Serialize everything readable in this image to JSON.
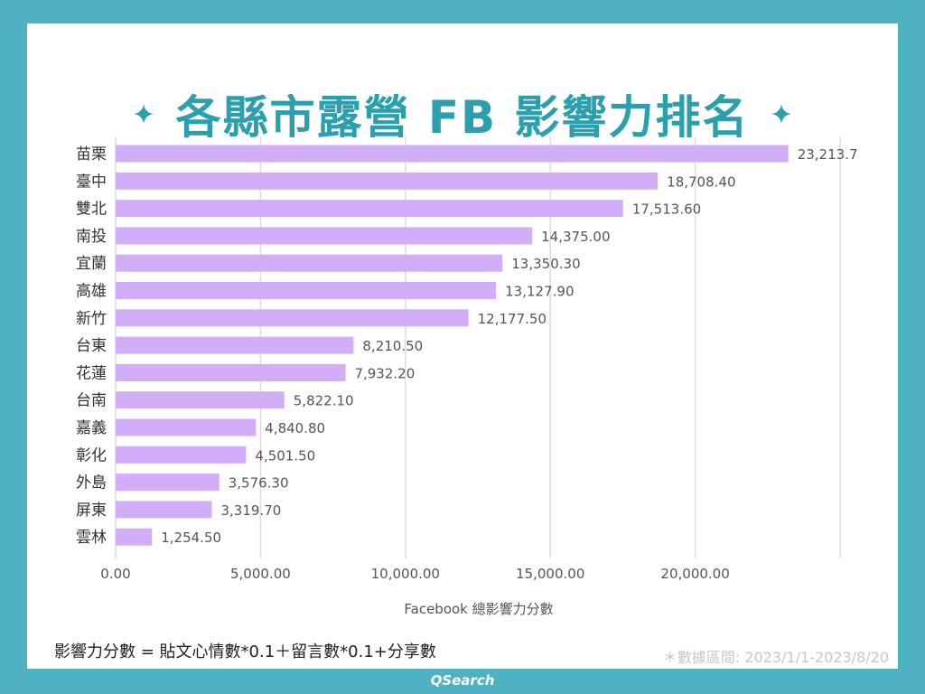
{
  "header": {
    "title": "各縣市露營 FB 影響力排名"
  },
  "footer": {
    "formula": "影響力分數 = 貼文心情數*0.1＋留言數*0.1+分享數",
    "date_range": "＊數據區間: 2023/1/1-2023/8/20",
    "brand": "QSearch"
  },
  "colors": {
    "background": "#4FB2C2",
    "bar": "#D1AEF7",
    "title": "#2A9FAE",
    "grid": "#DDDDDD"
  },
  "chart_data": {
    "type": "bar",
    "orientation": "horizontal",
    "categories": [
      "苗栗",
      "臺中",
      "雙北",
      "南投",
      "宜蘭",
      "高雄",
      "新竹",
      "台東",
      "花蓮",
      "台南",
      "嘉義",
      "彰化",
      "外島",
      "屏東",
      "雲林"
    ],
    "values": [
      23213.7,
      18708.4,
      17513.6,
      14375.0,
      13350.3,
      13127.9,
      12177.5,
      8210.5,
      7932.2,
      5822.1,
      4840.8,
      4501.5,
      3576.3,
      3319.7,
      1254.5
    ],
    "value_labels": [
      "23,213.7",
      "18,708.40",
      "17,513.60",
      "14,375.00",
      "13,350.30",
      "13,127.90",
      "12,177.50",
      "8,210.50",
      "7,932.20",
      "5,822.10",
      "4,840.80",
      "4,501.50",
      "3,576.30",
      "3,319.70",
      "1,254.50"
    ],
    "x_ticks": [
      0,
      5000,
      10000,
      15000,
      20000
    ],
    "x_tick_labels": [
      "0.00",
      "5,000.00",
      "10,000.00",
      "15,000.00",
      "20,000.00"
    ],
    "xlabel": "Facebook 總影響力分數",
    "xlim": [
      0,
      25000
    ],
    "grid": true
  }
}
